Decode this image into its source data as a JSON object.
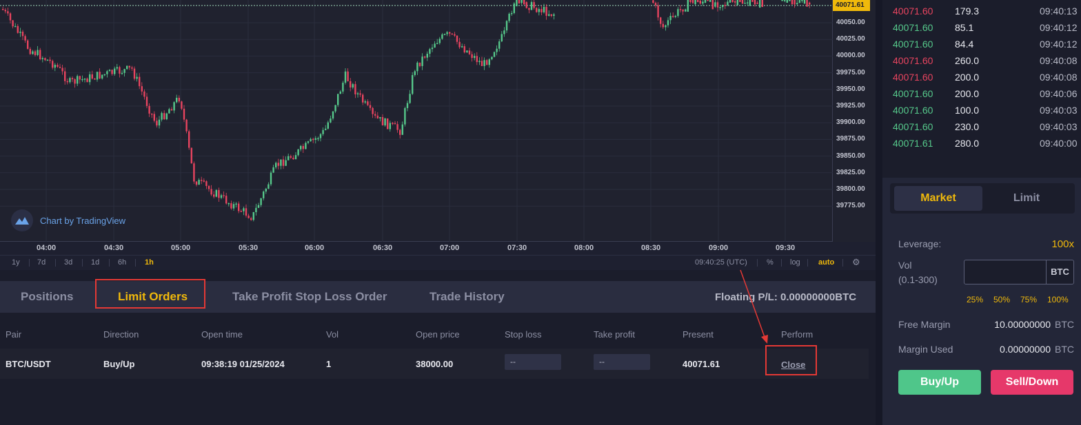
{
  "chart": {
    "watermark": "Chart by TradingView",
    "price_badge": "40071.61",
    "price_ticks": [
      "40050.00",
      "40025.00",
      "40000.00",
      "39975.00",
      "39950.00",
      "39925.00",
      "39900.00",
      "39875.00",
      "39850.00",
      "39825.00",
      "39800.00",
      "39775.00"
    ],
    "time_ticks": [
      "04:00",
      "04:30",
      "05:00",
      "05:30",
      "06:00",
      "06:30",
      "07:00",
      "07:30",
      "08:00",
      "08:30",
      "09:00",
      "09:30"
    ],
    "intervals": [
      "1y",
      "7d",
      "3d",
      "1d",
      "6h",
      "1h"
    ],
    "active_interval": "1h",
    "clock": "09:40:25 (UTC)",
    "toolbar_right": [
      "%",
      "log",
      "auto"
    ],
    "colors": {
      "up": "#56c98b",
      "down": "#e8445f",
      "accent": "#f0b90b"
    }
  },
  "trades": [
    {
      "price": "40071.60",
      "qty": "179.3",
      "time": "09:40:13",
      "side": "down"
    },
    {
      "price": "40071.60",
      "qty": "85.1",
      "time": "09:40:12",
      "side": "up"
    },
    {
      "price": "40071.60",
      "qty": "84.4",
      "time": "09:40:12",
      "side": "up"
    },
    {
      "price": "40071.60",
      "qty": "260.0",
      "time": "09:40:08",
      "side": "down"
    },
    {
      "price": "40071.60",
      "qty": "200.0",
      "time": "09:40:08",
      "side": "down"
    },
    {
      "price": "40071.60",
      "qty": "200.0",
      "time": "09:40:06",
      "side": "up"
    },
    {
      "price": "40071.60",
      "qty": "100.0",
      "time": "09:40:03",
      "side": "up"
    },
    {
      "price": "40071.60",
      "qty": "230.0",
      "time": "09:40:03",
      "side": "up"
    },
    {
      "price": "40071.61",
      "qty": "280.0",
      "time": "09:40:00",
      "side": "up"
    }
  ],
  "order_form": {
    "tabs": {
      "market": "Market",
      "limit": "Limit"
    },
    "leverage_label": "Leverage:",
    "leverage_value": "100x",
    "vol_label_1": "Vol",
    "vol_label_2": "(0.1-300)",
    "vol_unit": "BTC",
    "percents": [
      "25%",
      "50%",
      "75%",
      "100%"
    ],
    "free_margin_label": "Free Margin",
    "free_margin_value": "10.00000000",
    "margin_used_label": "Margin Used",
    "margin_used_value": "0.00000000",
    "unit": "BTC",
    "buy_label": "Buy/Up",
    "sell_label": "Sell/Down"
  },
  "orders": {
    "tabs": [
      "Positions",
      "Limit Orders",
      "Take Profit Stop Loss Order",
      "Trade History"
    ],
    "active_tab": "Limit Orders",
    "floating_pl": "Floating P/L:  0.00000000BTC",
    "columns": [
      "Pair",
      "Direction",
      "Open time",
      "Vol",
      "Open price",
      "Stop loss",
      "Take profit",
      "Present",
      "Perform"
    ],
    "row": {
      "pair": "BTC/USDT",
      "direction": "Buy/Up",
      "open_time": "09:38:19 01/25/2024",
      "vol": "1",
      "open_price": "38000.00",
      "stop_loss": "--",
      "take_profit": "--",
      "present": "40071.61",
      "perform": "Close"
    }
  }
}
